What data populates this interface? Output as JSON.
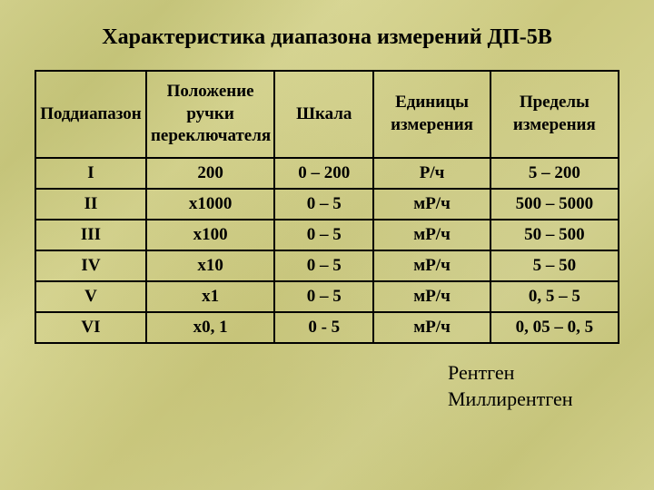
{
  "title": "Характеристика диапазона измерений ДП-5В",
  "table": {
    "headers": [
      "Поддиапазон",
      "Положение ручки переключателя",
      "Шкала",
      "Единицы измерения",
      "Пределы измерения"
    ],
    "rows": [
      [
        "I",
        "200",
        "0 – 200",
        "Р/ч",
        "5 – 200"
      ],
      [
        "II",
        "х1000",
        "0 – 5",
        "мР/ч",
        "500 – 5000"
      ],
      [
        "III",
        "х100",
        "0 – 5",
        "мР/ч",
        "50 – 500"
      ],
      [
        "IV",
        "х10",
        "0 – 5",
        "мР/ч",
        "5 – 50"
      ],
      [
        "V",
        "х1",
        "0 – 5",
        "мР/ч",
        "0, 5 – 5"
      ],
      [
        "VI",
        "х0, 1",
        "0 - 5",
        "мР/ч",
        "0, 05 – 0, 5"
      ]
    ],
    "col_widths": [
      "19%",
      "22%",
      "17%",
      "20%",
      "22%"
    ],
    "border_color": "#000000",
    "font_family": "Times New Roman",
    "header_fontsize": 19,
    "cell_fontsize": 19
  },
  "footer": {
    "line1": "Рентген",
    "line2": "Миллирентген"
  },
  "style": {
    "background_base": "#d2d08c",
    "title_fontsize": 24,
    "footer_fontsize": 22
  }
}
